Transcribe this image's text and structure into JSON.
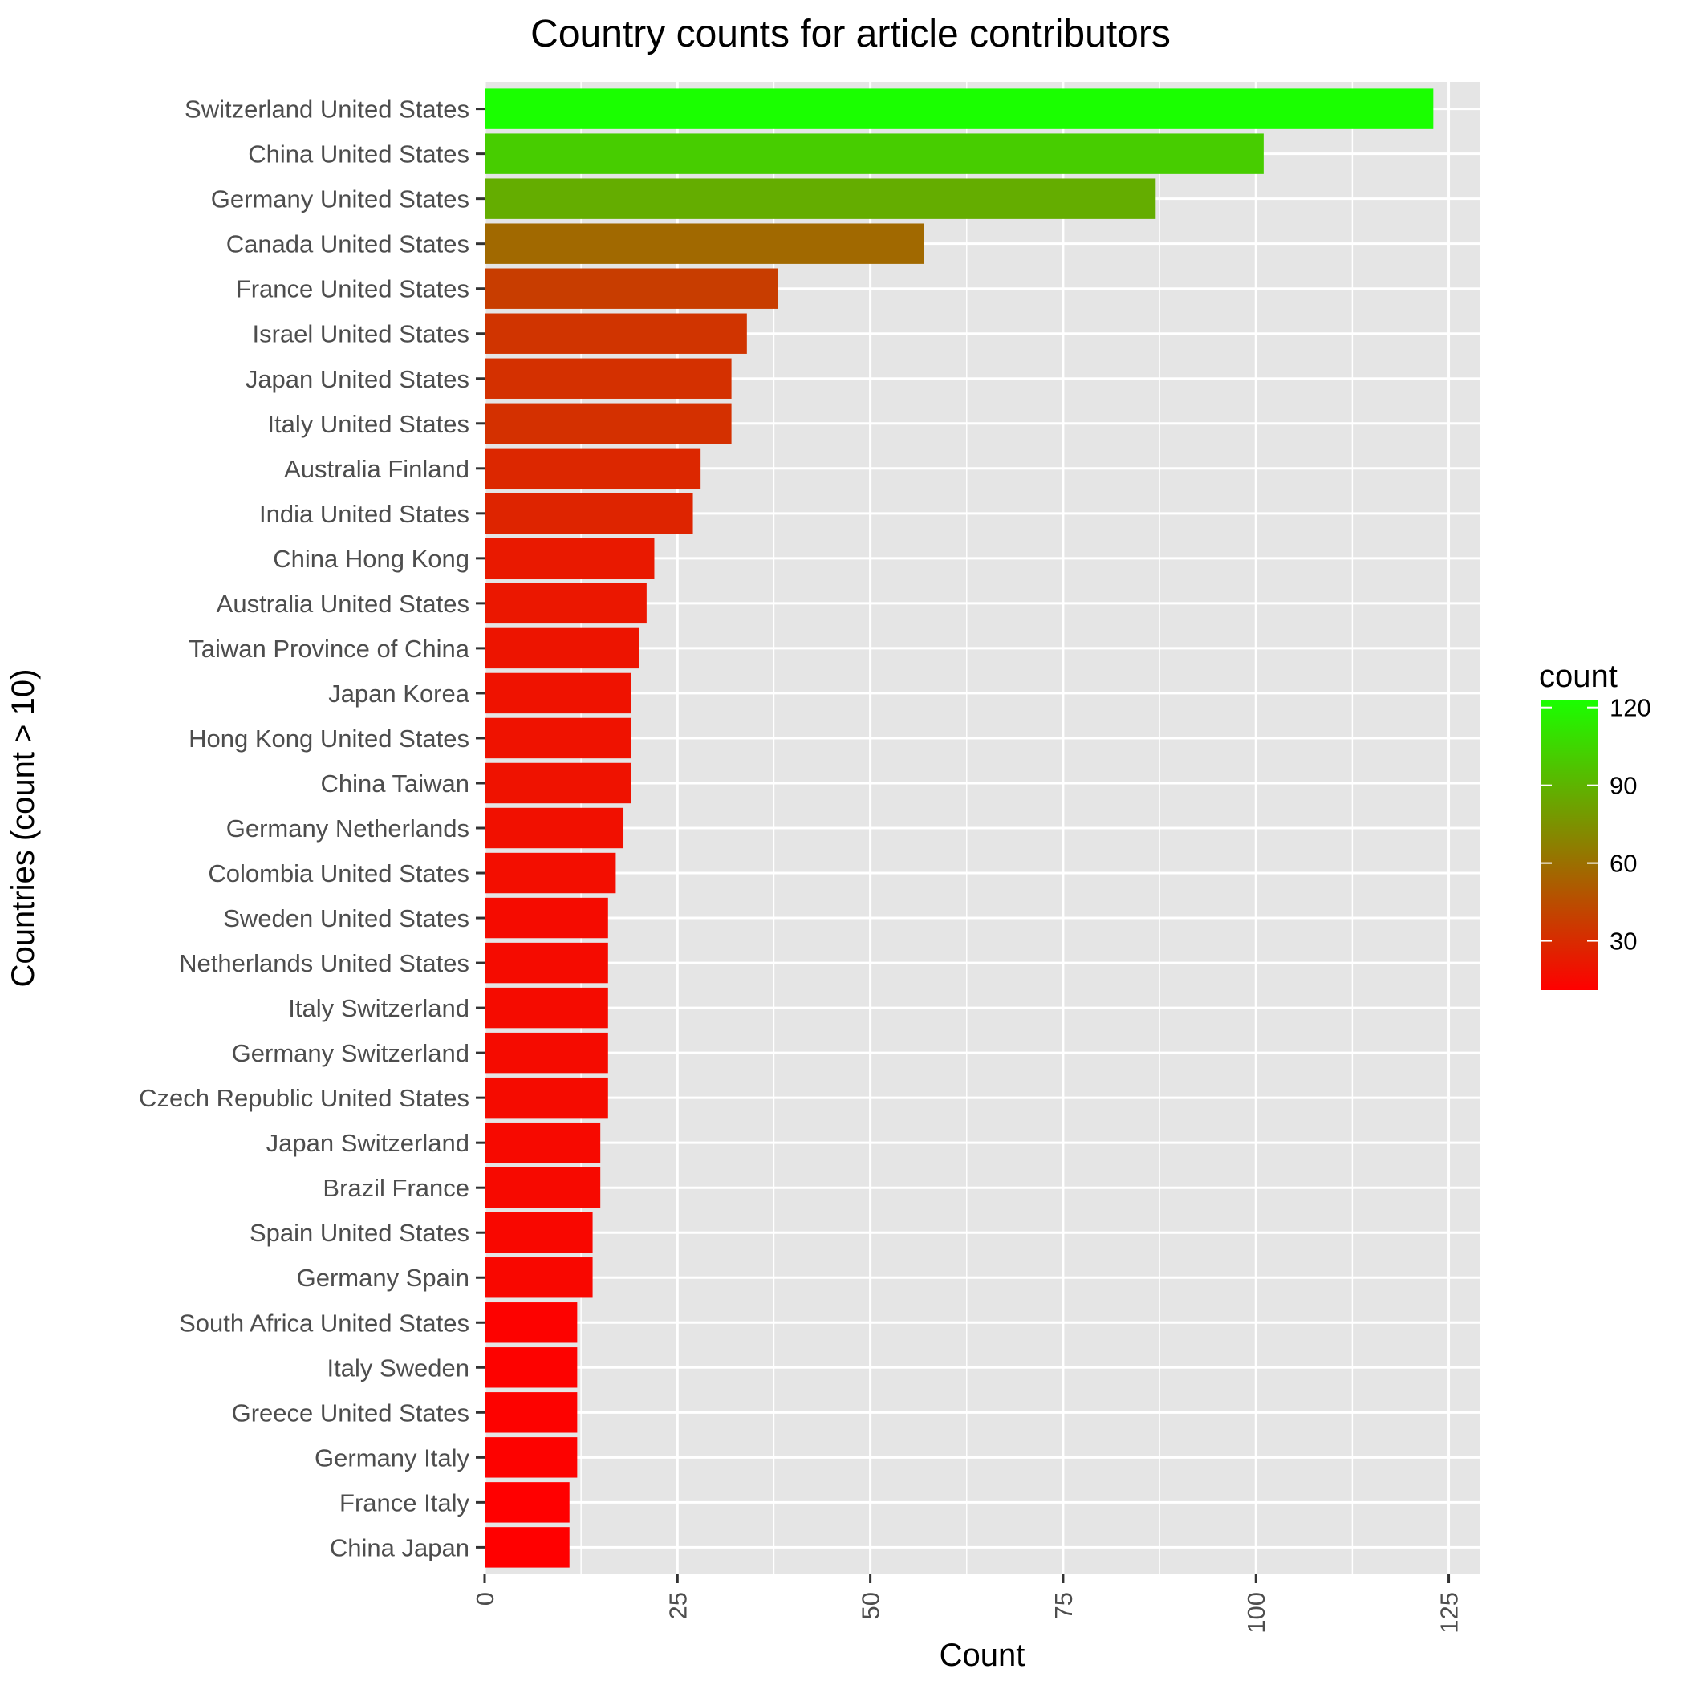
{
  "chart_data": {
    "type": "bar",
    "orientation": "horizontal",
    "title": "Country counts for article contributors",
    "xlabel": "Count",
    "ylabel": "Countries (count > 10)",
    "xlim": [
      0,
      129
    ],
    "x_ticks": [
      0,
      25,
      50,
      75,
      100,
      125
    ],
    "x_tick_labels": [
      "0",
      "25",
      "50",
      "75",
      "100",
      "125"
    ],
    "grid": true,
    "categories": [
      "Switzerland United States",
      "China United States",
      "Germany United States",
      "Canada United States",
      "France United States",
      "Israel United States",
      "Japan United States",
      "Italy United States",
      "Australia Finland",
      "India United States",
      "China Hong Kong",
      "Australia United States",
      "Taiwan Province of China",
      "Japan Korea",
      "Hong Kong United States",
      "China Taiwan",
      "Germany Netherlands",
      "Colombia United States",
      "Sweden United States",
      "Netherlands United States",
      "Italy Switzerland",
      "Germany Switzerland",
      "Czech Republic United States",
      "Japan Switzerland",
      "Brazil France",
      "Spain United States",
      "Germany Spain",
      "South Africa United States",
      "Italy Sweden",
      "Greece United States",
      "Germany Italy",
      "France Italy",
      "China Japan"
    ],
    "values": [
      123,
      101,
      87,
      57,
      38,
      34,
      32,
      32,
      28,
      27,
      22,
      21,
      20,
      19,
      19,
      19,
      18,
      17,
      16,
      16,
      16,
      16,
      16,
      15,
      15,
      14,
      14,
      12,
      12,
      12,
      12,
      11,
      11
    ],
    "legend": {
      "title": "count",
      "position": "right",
      "ticks": [
        30,
        60,
        90,
        120
      ],
      "tick_labels": [
        "30",
        "60",
        "90",
        "120"
      ],
      "range": [
        11,
        123
      ],
      "low_color": "#ff0000",
      "high_color": "#1aff00"
    },
    "colors": {
      "panel_background": "#e5e5e5",
      "grid": "#ffffff",
      "tick_text": "#4d4d4d",
      "tick_line": "#333333"
    }
  }
}
